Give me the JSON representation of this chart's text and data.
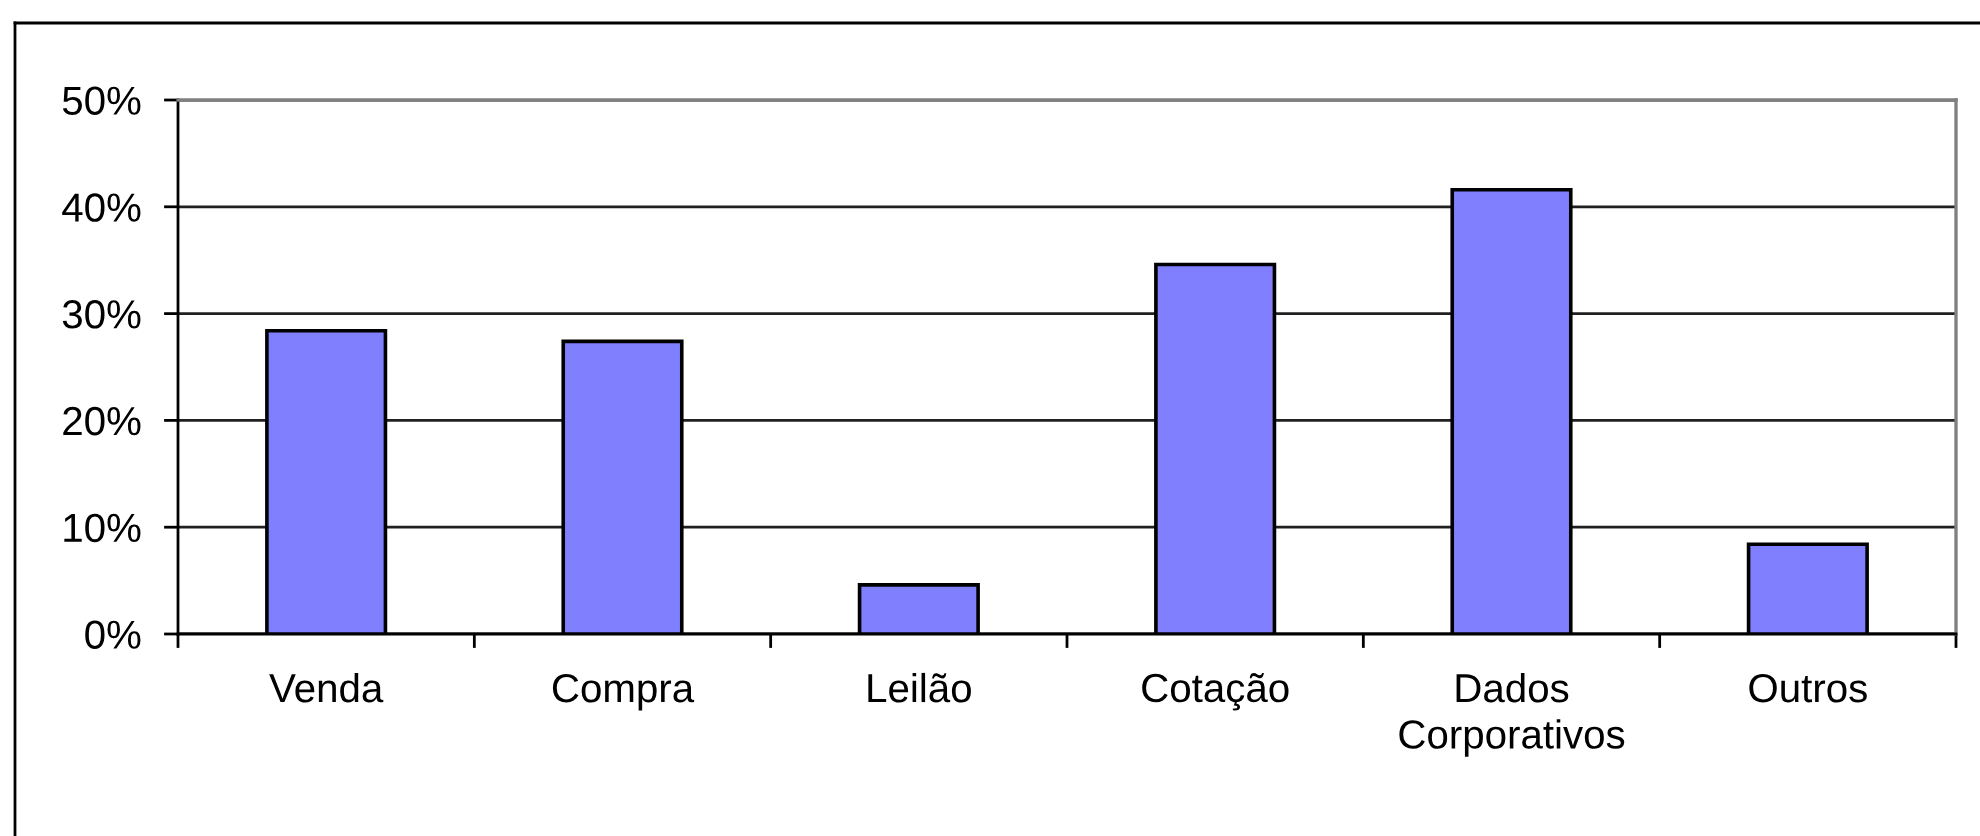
{
  "chart_data": {
    "type": "bar",
    "categories": [
      "Venda",
      "Compra",
      "Leilão",
      "Cotação",
      "Dados\nCorporativos",
      "Outros"
    ],
    "values": [
      28.4,
      27.4,
      4.6,
      34.6,
      41.6,
      8.4
    ],
    "color": "#8080ff",
    "ylim": [
      0,
      50
    ],
    "yticks": [
      {
        "value": 0,
        "label": "0%"
      },
      {
        "value": 10,
        "label": "10%"
      },
      {
        "value": 20,
        "label": "20%"
      },
      {
        "value": 30,
        "label": "30%"
      },
      {
        "value": 40,
        "label": "40%"
      },
      {
        "value": 50,
        "label": "50%"
      }
    ],
    "grid": "y",
    "legend": false
  }
}
